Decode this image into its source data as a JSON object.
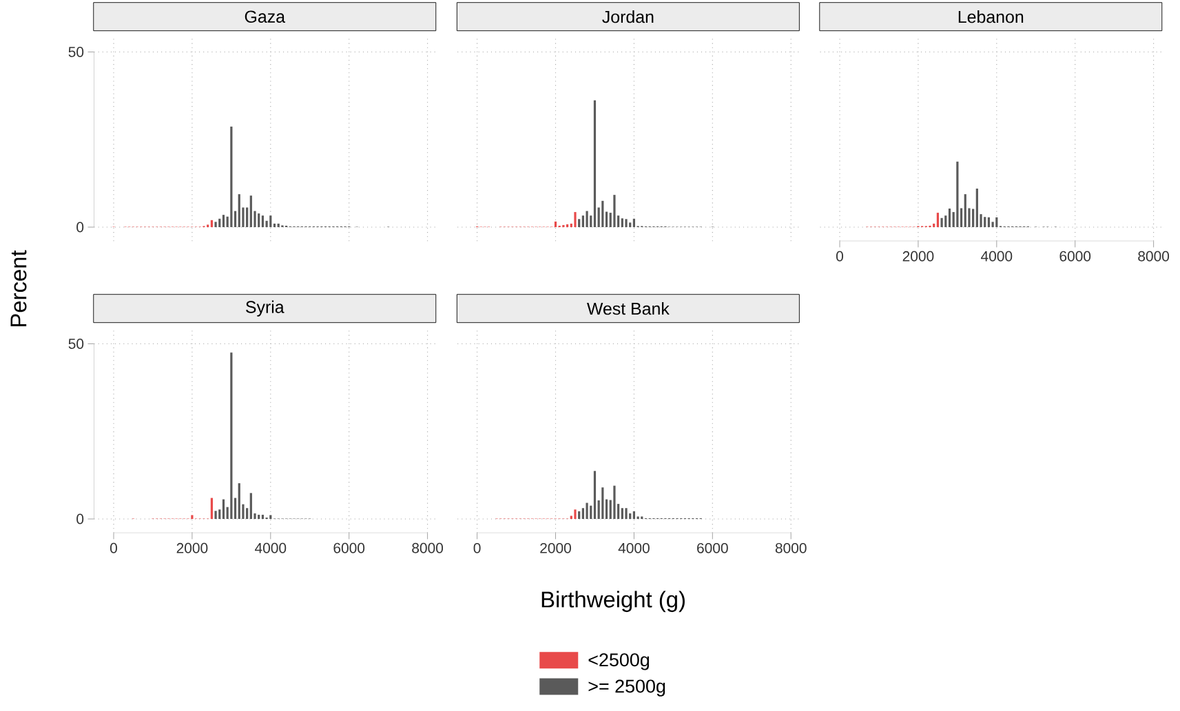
{
  "chart_data": [
    {
      "type": "histogram",
      "title": "Gaza",
      "ylabel": "Percent",
      "xlim": [
        -500,
        8200
      ],
      "ylim": [
        -4,
        54
      ],
      "xticks": [
        0,
        2000,
        4000,
        6000,
        8000
      ],
      "yticks": [
        0,
        50
      ],
      "grid": true,
      "tick_labels": "y",
      "bins": [
        -50,
        50,
        150,
        250,
        350,
        450,
        550,
        650,
        750,
        850,
        950,
        1050,
        1150,
        1250,
        1350,
        1450,
        1550,
        1650,
        1750,
        1850,
        1950,
        2050,
        2150,
        2250,
        2350,
        2450,
        2550,
        2650,
        2750,
        2850,
        2950,
        3050,
        3150,
        3250,
        3350,
        3450,
        3550,
        3650,
        3750,
        3850,
        3950,
        4050,
        4150,
        4250,
        4350,
        4450,
        4550,
        4650,
        4750,
        4850,
        4950,
        5050,
        5150,
        5250,
        5350,
        5450,
        5550,
        5650,
        5750,
        5850,
        5950,
        6050,
        6150,
        6250,
        6350,
        6450,
        6550,
        6650,
        6750,
        6850,
        6950,
        7050
      ],
      "series": [
        {
          "color": "#e84a4a",
          "values": [
            0.1,
            0,
            0,
            0.1,
            0.1,
            0.1,
            0.1,
            0.1,
            0.1,
            0.1,
            0.1,
            0.1,
            0.1,
            0.1,
            0.1,
            0.1,
            0.1,
            0.1,
            0.1,
            0.1,
            0.1,
            0.1,
            0.1,
            0.3,
            0.7,
            2.0,
            null,
            null,
            null,
            null,
            null,
            null,
            null,
            null,
            null,
            null,
            null,
            null,
            null,
            null,
            null,
            null,
            null,
            null,
            null,
            null,
            null,
            null,
            null,
            null,
            null,
            null,
            null,
            null,
            null,
            null,
            null,
            null,
            null,
            null,
            null,
            null,
            null,
            null,
            null,
            null,
            null,
            null,
            null,
            null,
            null
          ]
        },
        {
          "color": "#5a5a5a",
          "values": [
            null,
            null,
            null,
            null,
            null,
            null,
            null,
            null,
            null,
            null,
            null,
            null,
            null,
            null,
            null,
            null,
            null,
            null,
            null,
            null,
            null,
            null,
            null,
            null,
            null,
            null,
            1.5,
            2.4,
            3.5,
            3.0,
            28.7,
            4.6,
            9.4,
            5.6,
            5.6,
            9.0,
            4.6,
            3.9,
            3.3,
            1.8,
            3.3,
            1.0,
            1.0,
            0.5,
            0.4,
            0.2,
            0.2,
            0.2,
            0.2,
            0.2,
            0.2,
            0.2,
            0.2,
            0.2,
            0.2,
            0.2,
            0.2,
            0.2,
            0.2,
            0.2,
            0.2,
            0,
            0.1,
            0,
            0,
            0,
            0,
            0,
            0,
            0,
            0.1
          ]
        }
      ]
    },
    {
      "type": "histogram",
      "title": "Jordan",
      "xlim": [
        -500,
        8200
      ],
      "ylim": [
        -4,
        54
      ],
      "xticks": [
        0,
        2000,
        4000,
        6000,
        8000
      ],
      "yticks": [
        0,
        50
      ],
      "grid": true,
      "tick_labels": false,
      "bins": [
        -50,
        50,
        150,
        250,
        350,
        450,
        550,
        650,
        750,
        850,
        950,
        1050,
        1150,
        1250,
        1350,
        1450,
        1550,
        1650,
        1750,
        1850,
        1950,
        2050,
        2150,
        2250,
        2350,
        2450,
        2550,
        2650,
        2750,
        2850,
        2950,
        3050,
        3150,
        3250,
        3350,
        3450,
        3550,
        3650,
        3750,
        3850,
        3950,
        4050,
        4150,
        4250,
        4350,
        4450,
        4550,
        4650,
        4750,
        4850,
        4950,
        5050,
        5150,
        5250,
        5350,
        5450,
        5550,
        5650,
        5750,
        5850,
        5950,
        6050
      ],
      "series": [
        {
          "color": "#e84a4a",
          "values": [
            0.2,
            0.1,
            0.1,
            0.1,
            0,
            0,
            0.1,
            0.1,
            0.1,
            0.1,
            0.1,
            0.1,
            0.1,
            0.1,
            0.1,
            0.1,
            0.1,
            0.1,
            0.1,
            0.1,
            1.6,
            0.4,
            0.6,
            0.8,
            1.0,
            4.3,
            null,
            null,
            null,
            null,
            null,
            null,
            null,
            null,
            null,
            null,
            null,
            null,
            null,
            null,
            null,
            null,
            null,
            null,
            null,
            null,
            null,
            null,
            null,
            null,
            null,
            null,
            null,
            null,
            null,
            null,
            null,
            null,
            null,
            null,
            null
          ]
        },
        {
          "color": "#5a5a5a",
          "values": [
            null,
            null,
            null,
            null,
            null,
            null,
            null,
            null,
            null,
            null,
            null,
            null,
            null,
            null,
            null,
            null,
            null,
            null,
            null,
            null,
            null,
            null,
            null,
            null,
            null,
            null,
            2.3,
            3.3,
            4.6,
            3.3,
            36.2,
            5.6,
            7.5,
            4.4,
            4.1,
            9.2,
            3.3,
            2.5,
            2.3,
            1.3,
            2.4,
            0.3,
            0.3,
            0.2,
            0.2,
            0.2,
            0.2,
            0.2,
            0.2,
            0.1,
            0.1,
            0.1,
            0.1,
            0.1,
            0.1,
            0.1,
            0.1,
            0.1,
            0,
            0,
            0.1
          ]
        }
      ]
    },
    {
      "type": "histogram",
      "title": "Lebanon",
      "xlim": [
        -500,
        8200
      ],
      "ylim": [
        -4,
        54
      ],
      "xticks": [
        0,
        2000,
        4000,
        6000,
        8000
      ],
      "yticks": [
        0,
        50
      ],
      "grid": true,
      "tick_labels": "x",
      "bins": [
        650,
        750,
        850,
        950,
        1050,
        1150,
        1250,
        1350,
        1450,
        1550,
        1650,
        1750,
        1850,
        1950,
        2050,
        2150,
        2250,
        2350,
        2450,
        2550,
        2650,
        2750,
        2850,
        2950,
        3050,
        3150,
        3250,
        3350,
        3450,
        3550,
        3650,
        3750,
        3850,
        3950,
        4050,
        4150,
        4250,
        4350,
        4450,
        4550,
        4650,
        4750,
        4850,
        4950,
        5050,
        5150,
        5250,
        5350,
        5450,
        5550
      ],
      "series": [
        {
          "color": "#e84a4a",
          "values": [
            0.1,
            0.1,
            0.1,
            0.1,
            0.1,
            0.1,
            0.1,
            0.1,
            0.1,
            0.1,
            0.1,
            0.1,
            0.1,
            0.3,
            0.3,
            0.3,
            0.4,
            1.0,
            4.1,
            null,
            null,
            null,
            null,
            null,
            null,
            null,
            null,
            null,
            null,
            null,
            null,
            null,
            null,
            null,
            null,
            null,
            null,
            null,
            null,
            null,
            null,
            null,
            null,
            null,
            null,
            null,
            null,
            null,
            null
          ]
        },
        {
          "color": "#5a5a5a",
          "values": [
            null,
            null,
            null,
            null,
            null,
            null,
            null,
            null,
            null,
            null,
            null,
            null,
            null,
            null,
            null,
            null,
            null,
            null,
            null,
            2.6,
            3.3,
            5.3,
            4.3,
            18.7,
            5.4,
            9.4,
            5.4,
            5.2,
            11.0,
            3.7,
            2.9,
            2.8,
            1.5,
            2.8,
            0.3,
            0.2,
            0.2,
            0.2,
            0.2,
            0.2,
            0.2,
            0.2,
            0,
            0.1,
            0,
            0.1,
            0.1,
            0,
            0.1
          ]
        }
      ]
    },
    {
      "type": "histogram",
      "title": "Syria",
      "xlim": [
        -500,
        8200
      ],
      "ylim": [
        -4,
        54
      ],
      "xticks": [
        0,
        2000,
        4000,
        6000,
        8000
      ],
      "yticks": [
        0,
        50
      ],
      "grid": true,
      "bins": [
        450,
        550,
        650,
        750,
        850,
        950,
        1050,
        1150,
        1250,
        1350,
        1450,
        1550,
        1650,
        1750,
        1850,
        1950,
        2050,
        2150,
        2250,
        2350,
        2450,
        2550,
        2650,
        2750,
        2850,
        2950,
        3050,
        3150,
        3250,
        3350,
        3450,
        3550,
        3650,
        3750,
        3850,
        3950,
        4050,
        4150,
        4250,
        4350,
        4450,
        4550,
        4650,
        4750,
        4850,
        4950,
        5050
      ],
      "series": [
        {
          "color": "#e84a4a",
          "values": [
            0.1,
            0,
            0,
            0,
            0,
            0.1,
            0.1,
            0.1,
            0.1,
            0.1,
            0.1,
            0.1,
            0.1,
            0.1,
            0.1,
            1.1,
            0.1,
            0.1,
            0.1,
            0.1,
            6.0,
            null,
            null,
            null,
            null,
            null,
            null,
            null,
            null,
            null,
            null,
            null,
            null,
            null,
            null,
            null,
            null,
            null,
            null,
            null,
            null,
            null,
            null,
            null,
            null,
            null
          ]
        },
        {
          "color": "#5a5a5a",
          "values": [
            null,
            null,
            null,
            null,
            null,
            null,
            null,
            null,
            null,
            null,
            null,
            null,
            null,
            null,
            null,
            null,
            null,
            null,
            null,
            null,
            null,
            2.3,
            2.7,
            5.6,
            3.4,
            47.5,
            6.0,
            10.2,
            4.2,
            3.1,
            7.4,
            1.6,
            1.2,
            1.2,
            0.4,
            1.1,
            0.1,
            0.1,
            0.1,
            0.1,
            0.1,
            0.1,
            0.1,
            0.1,
            0.1,
            0.1
          ]
        }
      ]
    },
    {
      "type": "histogram",
      "title": "West Bank",
      "xlabel": "Birthweight (g)",
      "xlim": [
        -500,
        8200
      ],
      "ylim": [
        -4,
        54
      ],
      "xticks": [
        0,
        2000,
        4000,
        6000,
        8000
      ],
      "yticks": [
        0,
        50
      ],
      "grid": true,
      "tick_labels": "x",
      "legend": "bottom",
      "bins": [
        450,
        550,
        650,
        750,
        850,
        950,
        1050,
        1150,
        1250,
        1350,
        1450,
        1550,
        1650,
        1750,
        1850,
        1950,
        2050,
        2150,
        2250,
        2350,
        2450,
        2550,
        2650,
        2750,
        2850,
        2950,
        3050,
        3150,
        3250,
        3350,
        3450,
        3550,
        3650,
        3750,
        3850,
        3950,
        4050,
        4150,
        4250,
        4350,
        4450,
        4550,
        4650,
        4750,
        4850,
        4950,
        5050,
        5150,
        5250,
        5350,
        5450,
        5550,
        5650,
        5750
      ],
      "series": [
        {
          "name": "<2500g",
          "color": "#e84a4a",
          "values": [
            0.1,
            0.1,
            0.1,
            0.1,
            0.1,
            0.1,
            0.1,
            0.1,
            0.1,
            0.1,
            0.1,
            0.1,
            0.1,
            0.1,
            0.1,
            0.1,
            0.1,
            0.1,
            0.1,
            0.9,
            2.7,
            null,
            null,
            null,
            null,
            null,
            null,
            null,
            null,
            null,
            null,
            null,
            null,
            null,
            null,
            null,
            null,
            null,
            null,
            null,
            null,
            null,
            null,
            null,
            null,
            null,
            null,
            null,
            null,
            null,
            null,
            null,
            null
          ]
        },
        {
          "name": ">= 2500g",
          "color": "#5a5a5a",
          "values": [
            null,
            null,
            null,
            null,
            null,
            null,
            null,
            null,
            null,
            null,
            null,
            null,
            null,
            null,
            null,
            null,
            null,
            null,
            null,
            null,
            null,
            2.2,
            3.1,
            4.6,
            3.8,
            13.7,
            5.3,
            9.0,
            5.6,
            5.4,
            9.5,
            4.3,
            3.1,
            3.1,
            1.6,
            2.2,
            0.7,
            0.7,
            0.2,
            0.2,
            0.2,
            0.2,
            0.2,
            0.2,
            0.2,
            0.2,
            0.2,
            0.2,
            0.2,
            0.2,
            0.2,
            0.2,
            0.2
          ]
        }
      ]
    }
  ]
}
